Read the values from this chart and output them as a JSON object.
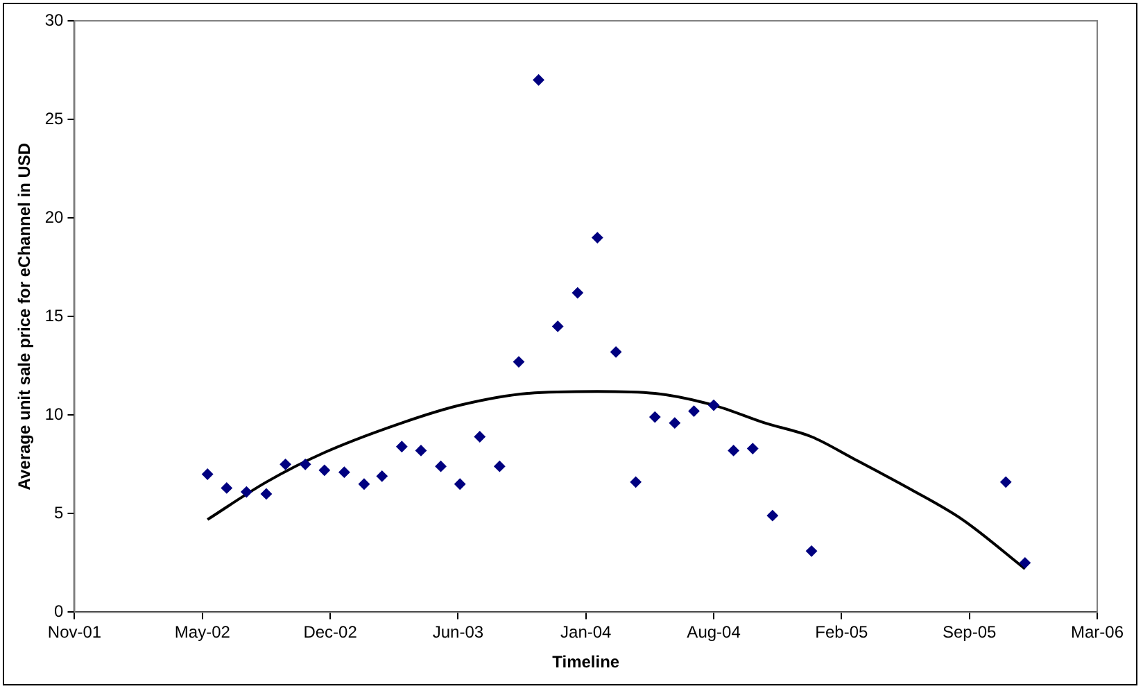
{
  "chart_data": {
    "type": "scatter",
    "xlabel": "Timeline",
    "ylabel": "Average unit sale price for eChannel in USD",
    "xlim": [
      "2001-11-05",
      "2006-03-24"
    ],
    "xticks": [
      {
        "value": "2001-11-05",
        "label": "Nov-01"
      },
      {
        "value": "2002-05-24",
        "label": "May-02"
      },
      {
        "value": "2002-12-10",
        "label": "Dec-02"
      },
      {
        "value": "2003-06-28",
        "label": "Jun-03"
      },
      {
        "value": "2004-01-14",
        "label": "Jan-04"
      },
      {
        "value": "2004-08-01",
        "label": "Aug-04"
      },
      {
        "value": "2005-02-17",
        "label": "Feb-05"
      },
      {
        "value": "2005-09-05",
        "label": "Sep-05"
      },
      {
        "value": "2006-03-24",
        "label": "Mar-06"
      }
    ],
    "ylim": [
      0,
      30
    ],
    "yticks": [
      0,
      5,
      10,
      15,
      20,
      25,
      30
    ],
    "grid": false,
    "legend": false,
    "marker": "diamond",
    "series": [
      {
        "type": "scatter",
        "color": "#000080",
        "x": [
          "2002-06-01",
          "2002-07-01",
          "2002-08-01",
          "2002-09-01",
          "2002-10-01",
          "2002-11-01",
          "2002-12-01",
          "2003-01-01",
          "2003-02-01",
          "2003-03-01",
          "2003-04-01",
          "2003-05-01",
          "2003-06-01",
          "2003-07-01",
          "2003-08-01",
          "2003-09-01",
          "2003-10-01",
          "2003-11-01",
          "2003-12-01",
          "2004-01-01",
          "2004-02-01",
          "2004-03-01",
          "2004-04-01",
          "2004-05-01",
          "2004-06-01",
          "2004-07-01",
          "2004-08-01",
          "2004-09-01",
          "2004-10-01",
          "2004-11-01",
          "2005-01-01",
          "2005-11-01",
          "2005-12-01"
        ],
        "values": [
          7.0,
          6.3,
          6.1,
          6.0,
          7.5,
          7.5,
          7.2,
          7.1,
          6.5,
          6.9,
          8.4,
          8.2,
          7.4,
          6.5,
          8.9,
          7.4,
          12.7,
          27.0,
          14.5,
          16.2,
          19.0,
          13.2,
          6.6,
          9.9,
          9.6,
          10.2,
          10.5,
          8.2,
          8.3,
          4.9,
          3.1,
          6.6,
          2.5
        ]
      },
      {
        "type": "line",
        "color": "#000000",
        "marker": "none",
        "line_style": "solid",
        "x": [
          "2002-06-01",
          "2002-09-01",
          "2002-12-01",
          "2003-04-01",
          "2003-07-01",
          "2003-10-15",
          "2004-02-01",
          "2004-05-01",
          "2004-08-01",
          "2004-10-20",
          "2005-01-01",
          "2005-03-07",
          "2005-06-07",
          "2005-08-25",
          "2005-12-01"
        ],
        "values": [
          4.7,
          6.6,
          8.1,
          9.6,
          10.5,
          11.1,
          11.2,
          11.1,
          10.5,
          9.6,
          8.9,
          7.8,
          6.2,
          4.7,
          2.2
        ]
      }
    ]
  }
}
